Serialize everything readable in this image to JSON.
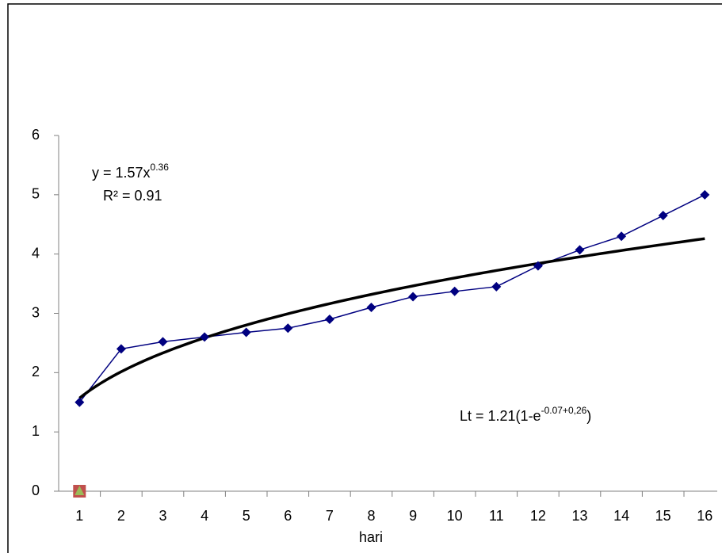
{
  "chart_data": {
    "type": "line",
    "x_label": "hari",
    "categories": [
      "1",
      "2",
      "3",
      "4",
      "5",
      "6",
      "7",
      "8",
      "9",
      "10",
      "11",
      "12",
      "13",
      "14",
      "15",
      "16"
    ],
    "series": [
      {
        "color": "#000080",
        "marker": "diamond",
        "values": [
          1.5,
          2.4,
          2.52,
          2.6,
          2.68,
          2.75,
          2.9,
          3.1,
          3.28,
          3.37,
          3.45,
          3.8,
          4.07,
          4.3,
          4.65,
          5.0
        ]
      },
      {
        "color": "#c0504d",
        "marker": "square",
        "values": [
          0,
          null,
          null,
          null,
          null,
          null,
          null,
          null,
          null,
          null,
          null,
          null,
          null,
          null,
          null,
          null
        ]
      },
      {
        "color": "#9bbb59",
        "marker": "triangle",
        "values": [
          0,
          null,
          null,
          null,
          null,
          null,
          null,
          null,
          null,
          null,
          null,
          null,
          null,
          null,
          null,
          null
        ]
      }
    ],
    "trendline": {
      "coefficient": 1.57,
      "exponent": 0.36,
      "label": "y = 1.57x",
      "label_exponent": "0.36",
      "r2_label": "R² = 0.91",
      "color": "#000000"
    },
    "annotation": {
      "text": "Lt = 1.21(1-e",
      "superscript": "-0.07+0,26",
      "suffix": ")"
    },
    "ylim": [
      0,
      6
    ],
    "yticks": [
      0,
      1,
      2,
      3,
      4,
      5,
      6
    ],
    "grid": false
  }
}
